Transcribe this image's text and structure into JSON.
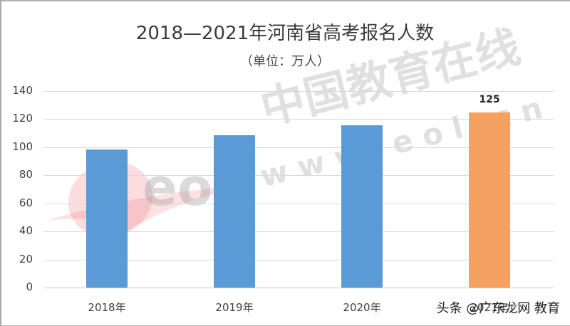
{
  "chart_data": {
    "type": "bar",
    "title": "2018—2021年河南省高考报名人数",
    "subtitle": "（单位：万人）",
    "categories": [
      "2018年",
      "2019年",
      "2020年",
      "2021年"
    ],
    "values": [
      98.3,
      108.6,
      115.8,
      125
    ],
    "data_labels": [
      "",
      "",
      "",
      "125"
    ],
    "colors": [
      "#5b9bd5",
      "#5b9bd5",
      "#5b9bd5",
      "#f4a162"
    ],
    "xlabel": "",
    "ylabel": "",
    "ylim": [
      0,
      140
    ],
    "yticks": [
      0,
      20,
      40,
      60,
      80,
      100,
      120,
      140
    ],
    "grid": true,
    "legend": "none"
  },
  "watermark": {
    "text_cn": "中国教育在线",
    "text_url": "w w w . e o l . c n",
    "logo": "eol"
  },
  "footer": {
    "text": "头条 @广东龙网 教育"
  }
}
